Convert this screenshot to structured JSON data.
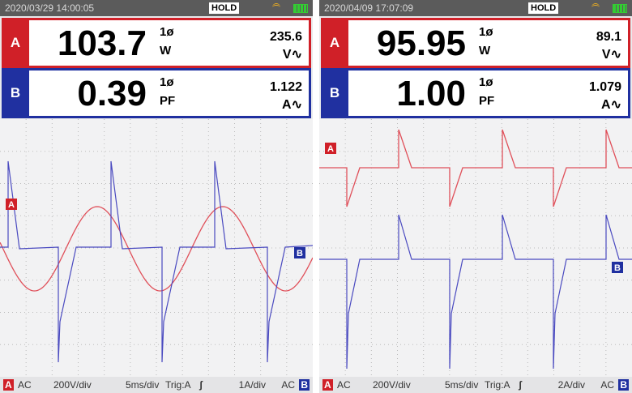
{
  "screens": [
    {
      "timestamp": "2020/03/29 14:00:05",
      "status": "HOLD",
      "reading_a": {
        "channel": "A",
        "value": "103.7",
        "phase": "1ø",
        "unit": "W",
        "secondary_value": "235.6",
        "secondary_unit": "V∿"
      },
      "reading_b": {
        "channel": "B",
        "value": "0.39",
        "phase": "1ø",
        "unit": "PF",
        "secondary_value": "1.122",
        "secondary_unit": "A∿"
      },
      "markers": {
        "a": "A",
        "b": "B"
      },
      "footer": {
        "a_label": "A",
        "a_coupling": "AC",
        "a_scale": "200V/div",
        "timebase": "5ms/div",
        "trigger": "Trig:A",
        "trigger_symbol": "ʃ",
        "b_scale": "1A/div",
        "b_coupling": "AC",
        "b_label": "B"
      }
    },
    {
      "timestamp": "2020/04/09 17:07:09",
      "status": "HOLD",
      "reading_a": {
        "channel": "A",
        "value": "95.95",
        "phase": "1ø",
        "unit": "W",
        "secondary_value": "89.1",
        "secondary_unit": "V∿"
      },
      "reading_b": {
        "channel": "B",
        "value": "1.00",
        "phase": "1ø",
        "unit": "PF",
        "secondary_value": "1.079",
        "secondary_unit": "A∿"
      },
      "markers": {
        "a": "A",
        "b": "B"
      },
      "footer": {
        "a_label": "A",
        "a_coupling": "AC",
        "a_scale": "200V/div",
        "timebase": "5ms/div",
        "trigger": "Trig:A",
        "trigger_symbol": "ʃ",
        "b_scale": "2A/div",
        "b_coupling": "AC",
        "b_label": "B"
      }
    }
  ]
}
